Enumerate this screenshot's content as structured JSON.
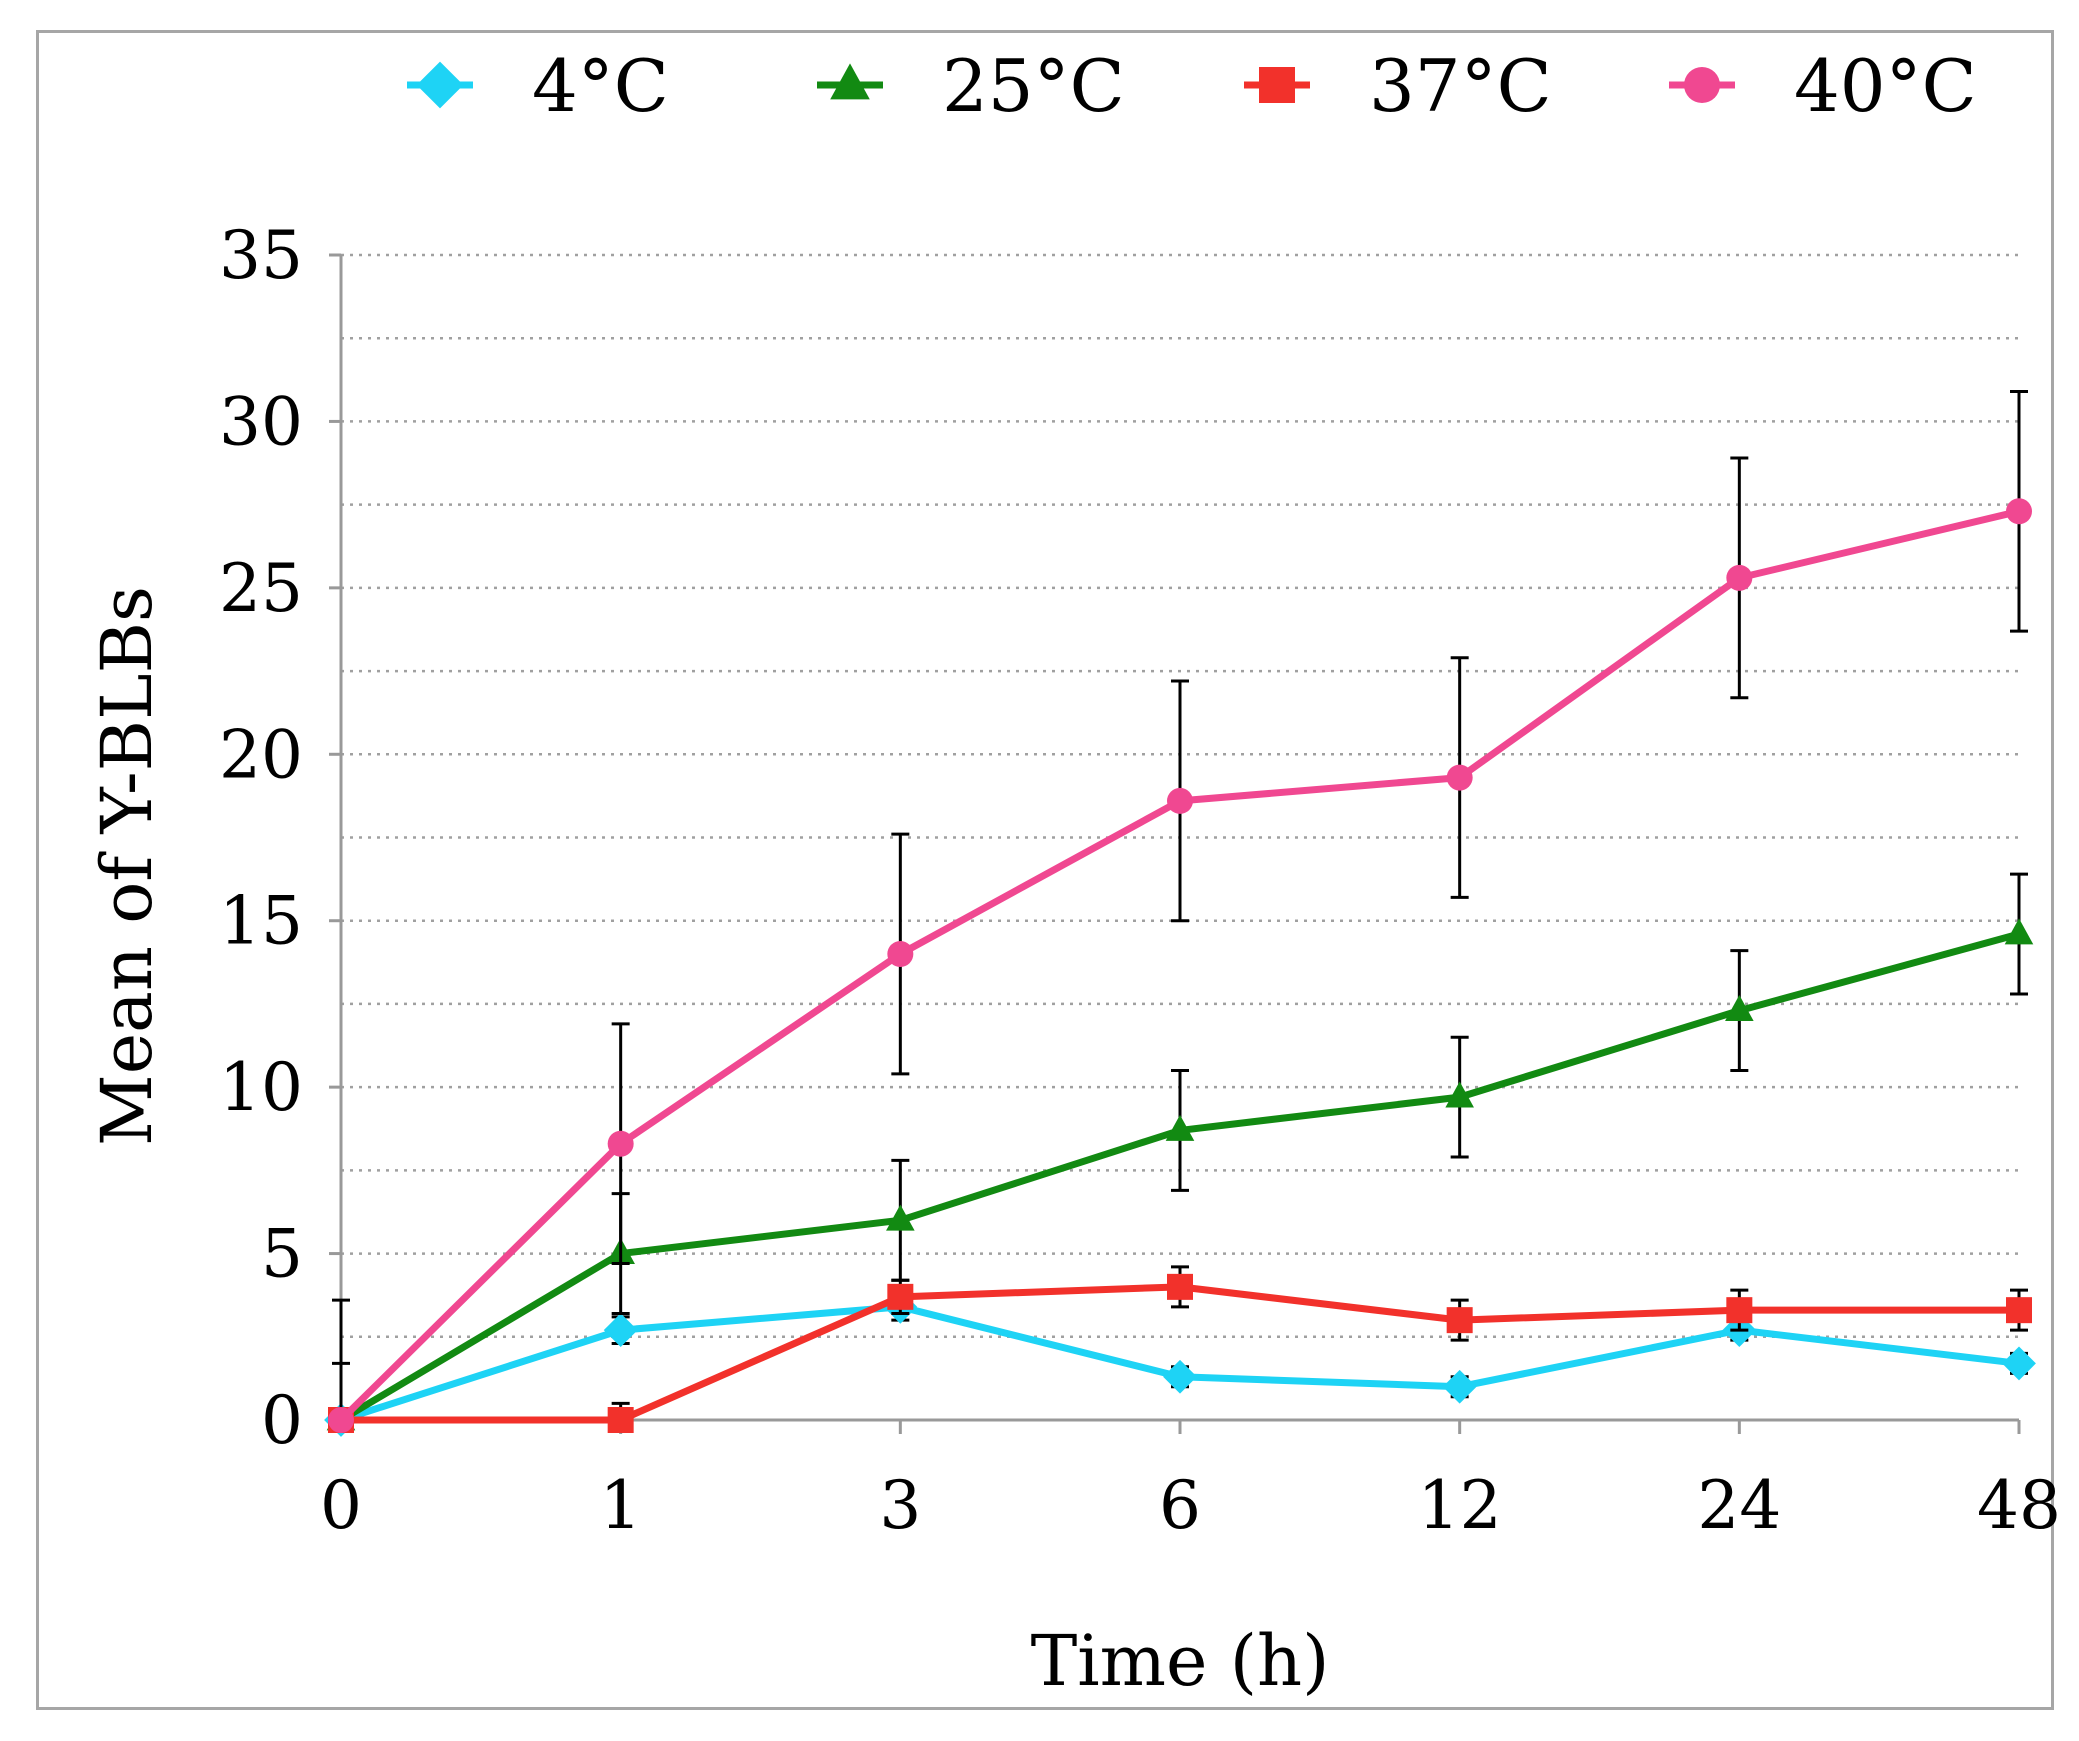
{
  "chart_data": {
    "type": "line",
    "title": "",
    "xlabel": "Time (h)",
    "ylabel": "Mean of Y-BLBs",
    "ylim": [
      0,
      35
    ],
    "yticks": [
      "0",
      "5",
      "10",
      "15",
      "20",
      "25",
      "30",
      "35"
    ],
    "categories": [
      "0",
      "1",
      "3",
      "6",
      "12",
      "24",
      "48"
    ],
    "grid": true,
    "legend_position": "top",
    "series": [
      {
        "name": "4°C",
        "color": "#1ed3f5",
        "marker": "diamond",
        "values": [
          0,
          2.7,
          3.4,
          1.3,
          1.0,
          2.7,
          1.7
        ],
        "errors": [
          1.7,
          0.4,
          0.4,
          0.3,
          0.3,
          0.3,
          0.3
        ]
      },
      {
        "name": "25°C",
        "color": "#128a12",
        "marker": "triangle",
        "values": [
          0,
          5.0,
          6.0,
          8.7,
          9.7,
          12.3,
          14.6
        ],
        "errors": [
          0.3,
          1.8,
          1.8,
          1.8,
          1.8,
          1.8,
          1.8
        ]
      },
      {
        "name": "37°C",
        "color": "#f2312b",
        "marker": "square",
        "values": [
          0,
          0,
          3.7,
          4.0,
          3.0,
          3.3,
          3.3
        ],
        "errors": [
          0.3,
          0.5,
          0.5,
          0.6,
          0.6,
          0.6,
          0.6
        ]
      },
      {
        "name": "40°C",
        "color": "#f04891",
        "marker": "circle",
        "values": [
          0,
          8.3,
          14.0,
          18.6,
          19.3,
          25.3,
          27.3
        ],
        "errors": [
          3.6,
          3.6,
          3.6,
          3.6,
          3.6,
          3.6,
          3.6
        ]
      }
    ]
  }
}
